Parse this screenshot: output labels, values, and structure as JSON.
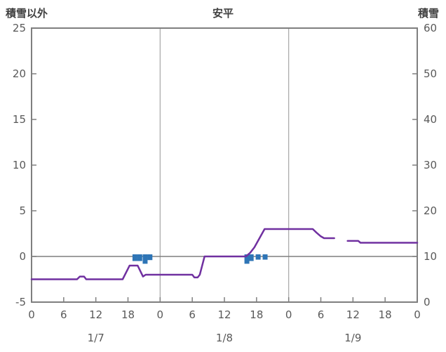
{
  "header": {
    "left_label": "積雪以外",
    "title": "安平",
    "right_label": "積雪"
  },
  "chart_data": {
    "type": "line",
    "title": "安平",
    "left_axis": {
      "label": "積雪以外",
      "min": -5,
      "max": 25,
      "ticks": [
        25,
        20,
        15,
        10,
        5,
        0,
        -5
      ]
    },
    "right_axis": {
      "label": "積雪",
      "min": 0,
      "max": 60,
      "ticks": [
        60,
        50,
        40,
        30,
        20,
        10,
        0
      ]
    },
    "x_axis": {
      "min": 0,
      "max": 72,
      "hour_ticks": [
        0,
        6,
        12,
        18,
        24,
        30,
        36,
        42,
        48,
        54,
        60,
        66,
        72
      ],
      "hour_labels": [
        "0",
        "6",
        "12",
        "18",
        "0",
        "6",
        "12",
        "18",
        "0",
        "6",
        "12",
        "18",
        "0"
      ],
      "day_labels": [
        {
          "label": "1/7",
          "hour": 12
        },
        {
          "label": "1/8",
          "hour": 36
        },
        {
          "label": "1/9",
          "hour": 60
        }
      ],
      "day_boundary_hours": [
        24,
        48
      ]
    },
    "zero_line_value": 0,
    "series": [
      {
        "name": "snow-line",
        "color": "#7030A0",
        "axis": "left",
        "points": [
          [
            0,
            -2.5
          ],
          [
            8.5,
            -2.5
          ],
          [
            9,
            -2.2
          ],
          [
            9.8,
            -2.2
          ],
          [
            10.2,
            -2.5
          ],
          [
            17,
            -2.5
          ],
          [
            18.3,
            -1
          ],
          [
            19.8,
            -1
          ],
          [
            20.3,
            -1.6
          ],
          [
            20.8,
            -2.2
          ],
          [
            21.3,
            -2
          ],
          [
            30,
            -2
          ],
          [
            30.4,
            -2.3
          ],
          [
            31,
            -2.3
          ],
          [
            31.4,
            -2
          ],
          [
            32.3,
            0
          ],
          [
            40,
            0
          ],
          [
            40.8,
            0.4
          ],
          [
            41.6,
            1
          ],
          [
            43.5,
            3
          ],
          [
            52.5,
            3
          ],
          [
            53.2,
            2.6
          ],
          [
            54,
            2.2
          ],
          [
            54.6,
            2
          ],
          [
            56.5,
            2
          ],
          null,
          [
            59,
            1.7
          ],
          [
            61,
            1.7
          ],
          [
            61.4,
            1.5
          ],
          [
            72,
            1.5
          ]
        ]
      },
      {
        "name": "precip-bars",
        "color": "#2E75B6",
        "axis": "left",
        "bars": [
          {
            "hour": 19.3,
            "depth": 0.5
          },
          {
            "hour": 20.2,
            "depth": 0.5
          },
          {
            "hour": 21.2,
            "depth": 0.8
          },
          {
            "hour": 22.1,
            "depth": 0.4
          },
          {
            "hour": 40.2,
            "depth": 0.8
          },
          {
            "hour": 41.0,
            "depth": 0.5
          },
          {
            "hour": 42.3,
            "depth": 0.35
          },
          {
            "hour": 43.6,
            "depth": 0.35
          }
        ]
      }
    ],
    "colors": {
      "border": "#7F7F7F",
      "grid": "#A6A6A6",
      "zero_line": "#7F7F7F",
      "tick": "#7F7F7F",
      "label": "#595959"
    }
  }
}
